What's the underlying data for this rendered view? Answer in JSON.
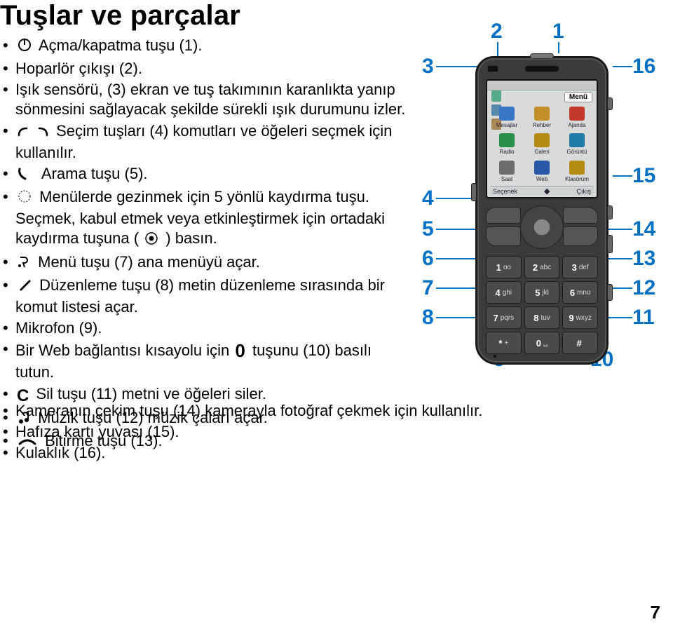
{
  "title": "Tuşlar ve parçalar",
  "page_number": "7",
  "bullets_left": [
    {
      "icon": "power-icon",
      "text": "Açma/kapatma tuşu (1)."
    },
    {
      "text": "Hoparlör çıkışı (2)."
    },
    {
      "text": "Işık sensörü, (3) ekran ve tuş takımının karanlıkta yanıp sönmesini sağlayacak şekilde sürekli ışık durumunu izler."
    },
    {
      "icon": "softkeys-icon",
      "text": "Seçim tuşları (4) komutları ve öğeleri seçmek için kullanılır."
    },
    {
      "icon": "call-icon",
      "text": "Arama tuşu (5)."
    },
    {
      "icon": "dpad-ring-icon",
      "text_before": "Menülerde gezinmek için 5 yönlü kaydırma tuşu. Seçmek, kabul etmek veya etkinleştirmek için ortadaki kaydırma tuşuna (",
      "icon_mid": "dpad-center-icon",
      "text_after": ") basın."
    },
    {
      "icon": "menu-icon",
      "text": "Menü tuşu (7) ana menüyü açar."
    },
    {
      "icon": "pencil-icon",
      "text": "Düzenleme tuşu (8) metin düzenleme sırasında bir komut listesi açar."
    },
    {
      "text": "Mikrofon (9)."
    },
    {
      "text_before": "Bir Web bağlantısı kısayolu için ",
      "icon_mid": "zero-key-icon",
      "text_after": " tuşunu (10) basılı tutun."
    },
    {
      "icon": "clear-c-icon",
      "text": "Sil tuşu (11) metni ve öğeleri siler."
    },
    {
      "icon": "music-note-icon",
      "text": "Müzik tuşu (12) müzik çaları açar."
    },
    {
      "icon": "end-icon",
      "text": "Bitirme tuşu (13)."
    }
  ],
  "bullets_full": [
    {
      "text": "Kameranın çekim tuşu (14) kamerayla fotoğraf çekmek için kullanılır."
    },
    {
      "text": "Hafıza kartı yuvası (15)."
    },
    {
      "text": "Kulaklık (16)."
    }
  ],
  "callouts": {
    "c1": "1",
    "c2": "2",
    "c3": "3",
    "c4": "4",
    "c5": "5",
    "c6": "6",
    "c7": "7",
    "c8": "8",
    "c9": "9",
    "c10": "10",
    "c11": "11",
    "c12": "12",
    "c13": "13",
    "c14": "14",
    "c15": "15",
    "c16": "16"
  },
  "phone_screen": {
    "menu_title": "Menü",
    "softkey_left": "Seçenek",
    "softkey_right": "Çıkış",
    "apps": [
      {
        "label": "Mesajlar",
        "color": "#3a76c8"
      },
      {
        "label": "Rehber",
        "color": "#c28f2a"
      },
      {
        "label": "Ajanda",
        "color": "#c0392b"
      },
      {
        "label": "Radio",
        "color": "#2a8f4a"
      },
      {
        "label": "Galeri",
        "color": "#b58a12"
      },
      {
        "label": "Görüntü",
        "color": "#1f7aa6"
      },
      {
        "label": "Saat",
        "color": "#6d6d6d"
      },
      {
        "label": "Web",
        "color": "#2a58a8"
      },
      {
        "label": "Klasörüm",
        "color": "#b58a12"
      }
    ]
  },
  "keypad": [
    {
      "big": "1",
      "sub": "oo"
    },
    {
      "big": "2",
      "sub": "abc"
    },
    {
      "big": "3",
      "sub": "def"
    },
    {
      "big": "4",
      "sub": "ghi"
    },
    {
      "big": "5",
      "sub": "jkl"
    },
    {
      "big": "6",
      "sub": "mno"
    },
    {
      "big": "7",
      "sub": "pqrs"
    },
    {
      "big": "8",
      "sub": "tuv"
    },
    {
      "big": "9",
      "sub": "wxyz"
    },
    {
      "big": "*",
      "sub": "+"
    },
    {
      "big": "0",
      "sub": "␣"
    },
    {
      "big": "#",
      "sub": ""
    }
  ],
  "colors": {
    "callout": "#0070c4"
  }
}
